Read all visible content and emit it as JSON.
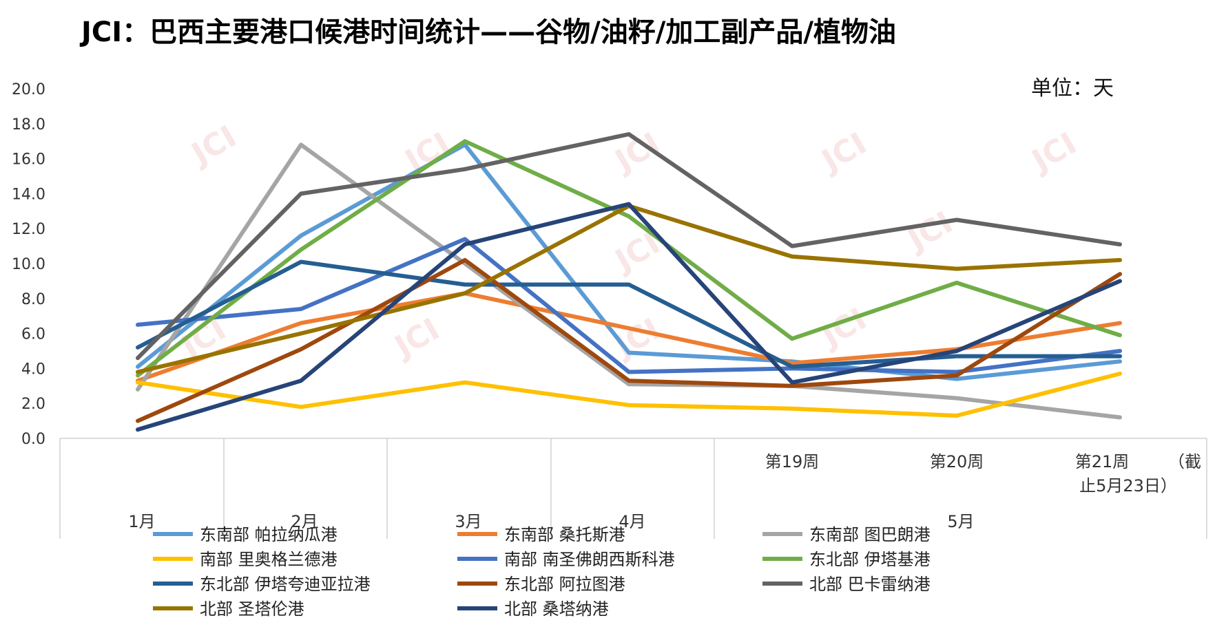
{
  "chart_data": {
    "type": "line",
    "title": "JCI：巴西主要港口候港时间统计——谷物/油籽/加工副产品/植物油",
    "unit_label": "单位：天",
    "watermark": "JCI",
    "ylim": [
      0,
      20
    ],
    "yticks": [
      "20.0",
      "18.0",
      "16.0",
      "14.0",
      "12.0",
      "10.0",
      "8.0",
      "6.0",
      "4.0",
      "2.0",
      "0.0"
    ],
    "ytick_values": [
      20,
      18,
      16,
      14,
      12,
      10,
      8,
      6,
      4,
      2,
      0
    ],
    "x_point_labels": [
      "",
      "",
      "",
      "",
      "第19周",
      "第20周",
      "第21周",
      "（截止5月23日）"
    ],
    "x_extra_label_line1": "（截",
    "x_extra_label_line2": "止5月23日）",
    "x_group_labels": [
      "1月",
      "2月",
      "3月",
      "4月",
      "5月"
    ],
    "series": [
      {
        "name": "东南部 帕拉纳瓜港",
        "color": "#5B9BD5",
        "values": [
          4.1,
          11.6,
          16.8,
          4.9,
          4.4,
          3.4,
          4.4
        ]
      },
      {
        "name": "东南部 桑托斯港",
        "color": "#ED7D31",
        "values": [
          3.3,
          6.6,
          8.3,
          6.3,
          4.3,
          5.1,
          6.6
        ]
      },
      {
        "name": "东南部 图巴朗港",
        "color": "#A5A5A5",
        "values": [
          2.8,
          16.8,
          10.0,
          3.1,
          3.0,
          2.3,
          1.2
        ]
      },
      {
        "name": "南部 里奥格兰德港",
        "color": "#FFC000",
        "values": [
          3.2,
          1.8,
          3.2,
          1.9,
          1.7,
          1.3,
          3.7
        ]
      },
      {
        "name": "南部 南圣佛朗西斯科港",
        "color": "#4472C4",
        "values": [
          6.5,
          7.4,
          11.4,
          3.8,
          4.0,
          3.8,
          5.0
        ]
      },
      {
        "name": "东北部 伊塔基港",
        "color": "#70AD47",
        "values": [
          3.6,
          10.8,
          17.0,
          12.7,
          5.7,
          8.9,
          5.9
        ]
      },
      {
        "name": "东北部 伊塔夸迪亚拉港",
        "color": "#255E91",
        "values": [
          5.2,
          10.1,
          8.8,
          8.8,
          4.1,
          4.7,
          4.7
        ]
      },
      {
        "name": "东北部 阿拉图港",
        "color": "#9E480E",
        "values": [
          1.0,
          5.1,
          10.2,
          3.3,
          3.0,
          3.6,
          9.4
        ]
      },
      {
        "name": "北部 巴卡雷纳港",
        "color": "#636363",
        "values": [
          4.6,
          14.0,
          15.4,
          17.4,
          11.0,
          12.5,
          11.1
        ]
      },
      {
        "name": "北部 圣塔伦港",
        "color": "#997300",
        "values": [
          3.8,
          6.0,
          8.3,
          13.3,
          10.4,
          9.7,
          10.2
        ]
      },
      {
        "name": "北部 桑塔纳港",
        "color": "#264478",
        "values": [
          0.5,
          3.3,
          11.1,
          13.4,
          3.2,
          5.0,
          9.0
        ]
      }
    ]
  }
}
